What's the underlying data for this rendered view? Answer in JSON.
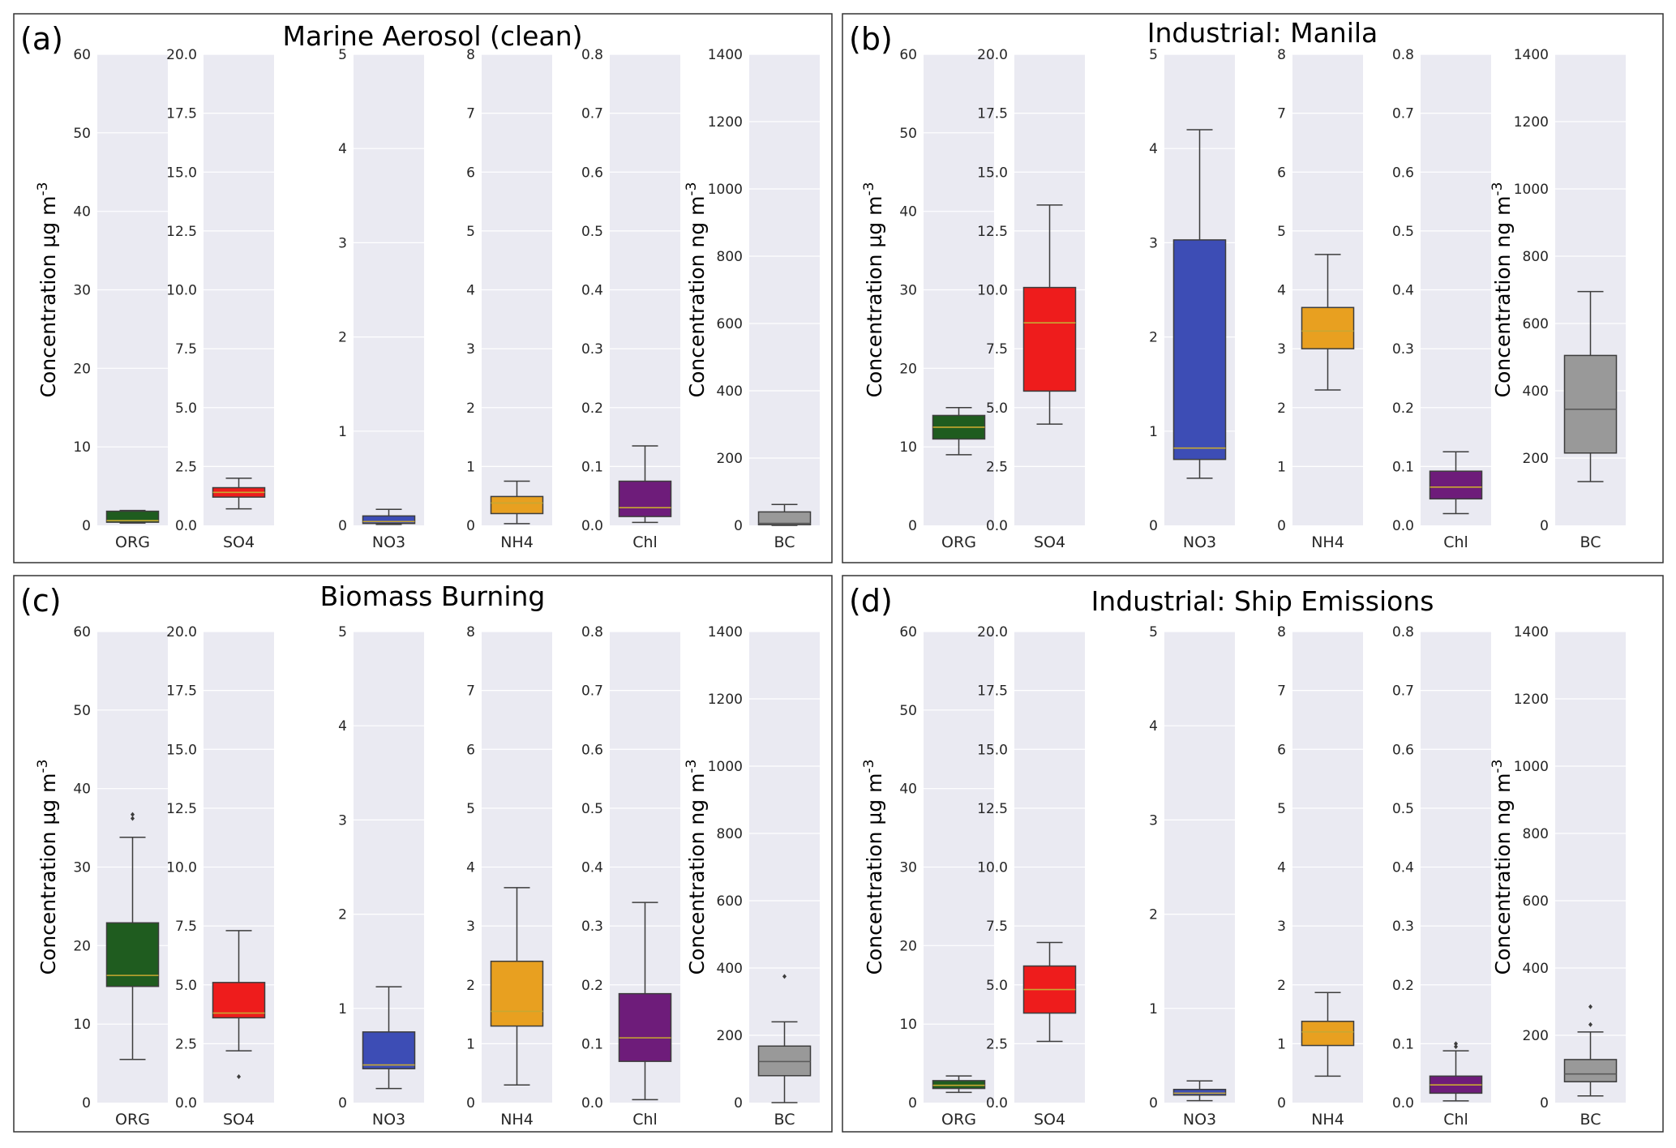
{
  "chart_data": [
    {
      "type": "box",
      "panel_label": "(a)",
      "title": "Marine Aerosol (clean)",
      "ylabel_left": "Concentration µg m-3",
      "ylabel_right": "Concentration ng m-3",
      "grid": true,
      "subplots": [
        {
          "category": "ORG",
          "color": "#1f5c1f",
          "ylim": [
            0,
            60
          ],
          "yticks": [
            "0",
            "10",
            "20",
            "30",
            "40",
            "50",
            "60"
          ],
          "whislo": 0.3,
          "q1": 0.4,
          "median": 0.6,
          "q3": 1.8,
          "whishi": 1.9,
          "outliers": []
        },
        {
          "category": "SO4",
          "color": "#ee1c1c",
          "ylim": [
            0,
            20
          ],
          "yticks": [
            "0.0",
            "2.5",
            "5.0",
            "7.5",
            "10.0",
            "12.5",
            "15.0",
            "17.5",
            "20.0"
          ],
          "whislo": 0.7,
          "q1": 1.2,
          "median": 1.4,
          "q3": 1.6,
          "whishi": 2.0,
          "outliers": []
        },
        {
          "category": "NO3",
          "color": "#3d4db5",
          "ylim": [
            0,
            5
          ],
          "yticks": [
            "0",
            "1",
            "2",
            "3",
            "4",
            "5"
          ],
          "whislo": 0.01,
          "q1": 0.02,
          "median": 0.04,
          "q3": 0.1,
          "whishi": 0.17,
          "outliers": []
        },
        {
          "category": "NH4",
          "color": "#e8a020",
          "ylim": [
            0,
            8
          ],
          "yticks": [
            "0",
            "1",
            "2",
            "3",
            "4",
            "5",
            "6",
            "7",
            "8"
          ],
          "whislo": 0.03,
          "q1": 0.2,
          "median": 0.38,
          "q3": 0.49,
          "whishi": 0.75,
          "outliers": []
        },
        {
          "category": "Chl",
          "color": "#6e1c7a",
          "ylim": [
            0,
            0.8
          ],
          "yticks": [
            "0.0",
            "0.1",
            "0.2",
            "0.3",
            "0.4",
            "0.5",
            "0.6",
            "0.7",
            "0.8"
          ],
          "whislo": 0.005,
          "q1": 0.015,
          "median": 0.03,
          "q3": 0.075,
          "whishi": 0.135,
          "outliers": []
        },
        {
          "category": "BC",
          "color": "#999999",
          "ylim": [
            0,
            1400
          ],
          "yticks": [
            "0",
            "200",
            "400",
            "600",
            "800",
            "1000",
            "1200",
            "1400"
          ],
          "whislo": 0,
          "q1": 2,
          "median": 6,
          "q3": 40,
          "whishi": 62,
          "outliers": []
        }
      ]
    },
    {
      "type": "box",
      "panel_label": "(b)",
      "title": "Industrial: Manila",
      "ylabel_left": "Concentration µg m-3",
      "ylabel_right": "Concentration ng m-3",
      "grid": true,
      "subplots": [
        {
          "category": "ORG",
          "color": "#1f5c1f",
          "ylim": [
            0,
            60
          ],
          "yticks": [
            "0",
            "10",
            "20",
            "30",
            "40",
            "50",
            "60"
          ],
          "whislo": 9.0,
          "q1": 11.0,
          "median": 12.5,
          "q3": 14.0,
          "whishi": 15.0,
          "outliers": []
        },
        {
          "category": "SO4",
          "color": "#ee1c1c",
          "ylim": [
            0,
            20
          ],
          "yticks": [
            "0.0",
            "2.5",
            "5.0",
            "7.5",
            "10.0",
            "12.5",
            "15.0",
            "17.5",
            "20.0"
          ],
          "whislo": 4.3,
          "q1": 5.7,
          "median": 8.6,
          "q3": 10.1,
          "whishi": 13.6,
          "outliers": []
        },
        {
          "category": "NO3",
          "color": "#3d4db5",
          "ylim": [
            0,
            5
          ],
          "yticks": [
            "0",
            "1",
            "2",
            "3",
            "4",
            "5"
          ],
          "whislo": 0.5,
          "q1": 0.7,
          "median": 0.82,
          "q3": 3.03,
          "whishi": 4.2,
          "outliers": []
        },
        {
          "category": "NH4",
          "color": "#e8a020",
          "ylim": [
            0,
            8
          ],
          "yticks": [
            "0",
            "1",
            "2",
            "3",
            "4",
            "5",
            "6",
            "7",
            "8"
          ],
          "whislo": 2.3,
          "q1": 3.0,
          "median": 3.3,
          "q3": 3.7,
          "whishi": 4.6,
          "outliers": []
        },
        {
          "category": "Chl",
          "color": "#6e1c7a",
          "ylim": [
            0,
            0.8
          ],
          "yticks": [
            "0.0",
            "0.1",
            "0.2",
            "0.3",
            "0.4",
            "0.5",
            "0.6",
            "0.7",
            "0.8"
          ],
          "whislo": 0.02,
          "q1": 0.045,
          "median": 0.065,
          "q3": 0.092,
          "whishi": 0.125,
          "outliers": []
        },
        {
          "category": "BC",
          "color": "#999999",
          "ylim": [
            0,
            1400
          ],
          "yticks": [
            "0",
            "200",
            "400",
            "600",
            "800",
            "1000",
            "1200",
            "1400"
          ],
          "whislo": 130,
          "q1": 215,
          "median": 345,
          "q3": 505,
          "whishi": 695,
          "outliers": []
        }
      ]
    },
    {
      "type": "box",
      "panel_label": "(c)",
      "title": "Biomass Burning",
      "ylabel_left": "Concentration µg m-3",
      "ylabel_right": "Concentration ng m-3",
      "grid": true,
      "subplots": [
        {
          "category": "ORG",
          "color": "#1f5c1f",
          "ylim": [
            0,
            60
          ],
          "yticks": [
            "0",
            "10",
            "20",
            "30",
            "40",
            "50",
            "60"
          ],
          "whislo": 5.5,
          "q1": 14.8,
          "median": 16.2,
          "q3": 22.9,
          "whishi": 33.8,
          "outliers": [
            36.2,
            36.7
          ]
        },
        {
          "category": "SO4",
          "color": "#ee1c1c",
          "ylim": [
            0,
            20
          ],
          "yticks": [
            "0.0",
            "2.5",
            "5.0",
            "7.5",
            "10.0",
            "12.5",
            "15.0",
            "17.5",
            "20.0"
          ],
          "whislo": 2.2,
          "q1": 3.6,
          "median": 3.8,
          "q3": 5.1,
          "whishi": 7.3,
          "outliers": [
            1.1
          ]
        },
        {
          "category": "NO3",
          "color": "#3d4db5",
          "ylim": [
            0,
            5
          ],
          "yticks": [
            "0",
            "1",
            "2",
            "3",
            "4",
            "5"
          ],
          "whislo": 0.15,
          "q1": 0.36,
          "median": 0.4,
          "q3": 0.75,
          "whishi": 1.23,
          "outliers": []
        },
        {
          "category": "NH4",
          "color": "#e8a020",
          "ylim": [
            0,
            8
          ],
          "yticks": [
            "0",
            "1",
            "2",
            "3",
            "4",
            "5",
            "6",
            "7",
            "8"
          ],
          "whislo": 0.3,
          "q1": 1.3,
          "median": 1.55,
          "q3": 2.4,
          "whishi": 3.65,
          "outliers": []
        },
        {
          "category": "Chl",
          "color": "#6e1c7a",
          "ylim": [
            0,
            0.8
          ],
          "yticks": [
            "0.0",
            "0.1",
            "0.2",
            "0.3",
            "0.4",
            "0.5",
            "0.6",
            "0.7",
            "0.8"
          ],
          "whislo": 0.005,
          "q1": 0.07,
          "median": 0.11,
          "q3": 0.185,
          "whishi": 0.34,
          "outliers": []
        },
        {
          "category": "BC",
          "color": "#999999",
          "ylim": [
            0,
            1400
          ],
          "yticks": [
            "0",
            "200",
            "400",
            "600",
            "800",
            "1000",
            "1200",
            "1400"
          ],
          "whislo": 0,
          "q1": 80,
          "median": 122,
          "q3": 168,
          "whishi": 240,
          "outliers": [
            375
          ]
        }
      ]
    },
    {
      "type": "box",
      "panel_label": "(d)",
      "title": "Industrial: Ship Emissions",
      "ylabel_left": "Concentration µg m-3",
      "ylabel_right": "Concentration ng m-3",
      "grid": true,
      "subplots": [
        {
          "category": "ORG",
          "color": "#1f5c1f",
          "ylim": [
            0,
            60
          ],
          "yticks": [
            "0",
            "10",
            "20",
            "30",
            "40",
            "50",
            "60"
          ],
          "whislo": 1.3,
          "q1": 1.8,
          "median": 2.2,
          "q3": 2.8,
          "whishi": 3.4,
          "outliers": []
        },
        {
          "category": "SO4",
          "color": "#ee1c1c",
          "ylim": [
            0,
            20
          ],
          "yticks": [
            "0.0",
            "2.5",
            "5.0",
            "7.5",
            "10.0",
            "12.5",
            "15.0",
            "17.5",
            "20.0"
          ],
          "whislo": 2.6,
          "q1": 3.8,
          "median": 4.8,
          "q3": 5.8,
          "whishi": 6.8,
          "outliers": []
        },
        {
          "category": "NO3",
          "color": "#3d4db5",
          "ylim": [
            0,
            5
          ],
          "yticks": [
            "0",
            "1",
            "2",
            "3",
            "4",
            "5"
          ],
          "whislo": 0.02,
          "q1": 0.08,
          "median": 0.1,
          "q3": 0.14,
          "whishi": 0.23,
          "outliers": []
        },
        {
          "category": "NH4",
          "color": "#e8a020",
          "ylim": [
            0,
            8
          ],
          "yticks": [
            "0",
            "1",
            "2",
            "3",
            "4",
            "5",
            "6",
            "7",
            "8"
          ],
          "whislo": 0.45,
          "q1": 0.97,
          "median": 1.2,
          "q3": 1.38,
          "whishi": 1.87,
          "outliers": []
        },
        {
          "category": "Chl",
          "color": "#6e1c7a",
          "ylim": [
            0,
            0.8
          ],
          "yticks": [
            "0.0",
            "0.1",
            "0.2",
            "0.3",
            "0.4",
            "0.5",
            "0.6",
            "0.7",
            "0.8"
          ],
          "whislo": 0.003,
          "q1": 0.016,
          "median": 0.03,
          "q3": 0.045,
          "whishi": 0.088,
          "outliers": [
            0.095,
            0.1
          ]
        },
        {
          "category": "BC",
          "color": "#999999",
          "ylim": [
            0,
            1400
          ],
          "yticks": [
            "0",
            "200",
            "400",
            "600",
            "800",
            "1000",
            "1200",
            "1400"
          ],
          "whislo": 20,
          "q1": 62,
          "median": 85,
          "q3": 128,
          "whishi": 210,
          "outliers": [
            232,
            285
          ]
        }
      ]
    }
  ]
}
